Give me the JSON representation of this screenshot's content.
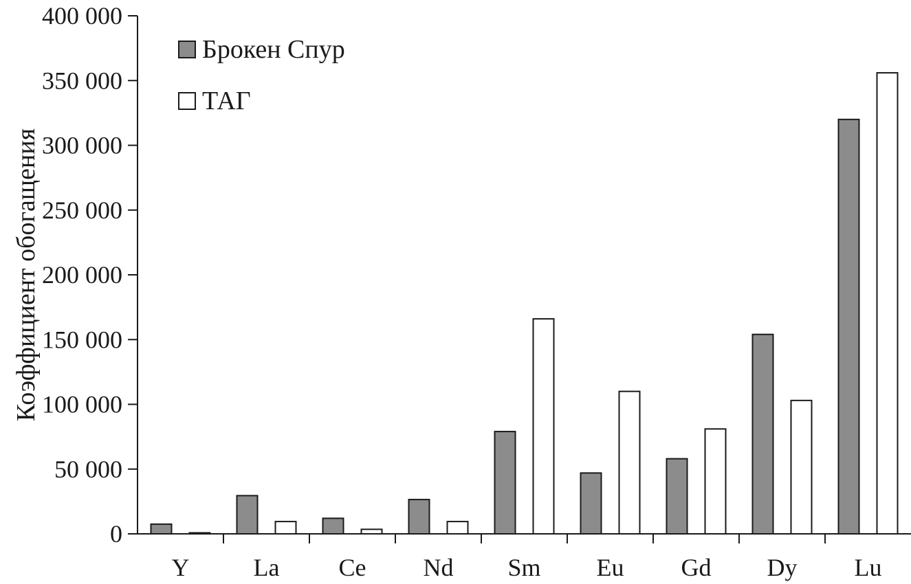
{
  "chart_data": {
    "type": "bar",
    "ylabel": "Коэффициент обогащения",
    "xlabel": "",
    "ylim": [
      0,
      400000
    ],
    "yticks": [
      0,
      50000,
      100000,
      150000,
      200000,
      250000,
      300000,
      350000,
      400000
    ],
    "ytick_labels": [
      "0",
      "50 000",
      "100 000",
      "150 000",
      "200 000",
      "250 000",
      "300 000",
      "350 000",
      "400 000"
    ],
    "categories": [
      "Y",
      "La",
      "Ce",
      "Nd",
      "Sm",
      "Eu",
      "Gd",
      "Dy",
      "Lu"
    ],
    "series": [
      {
        "name": "Брокен Спур",
        "color": "#8c8c8c",
        "values": [
          7500,
          29500,
          12000,
          26500,
          79000,
          47000,
          58000,
          154000,
          320000
        ]
      },
      {
        "name": "ТАГ",
        "color": "#ffffff",
        "values": [
          800,
          9500,
          3500,
          9500,
          166000,
          110000,
          81000,
          103000,
          356000
        ]
      }
    ],
    "legend": "top-left",
    "grid": false
  }
}
